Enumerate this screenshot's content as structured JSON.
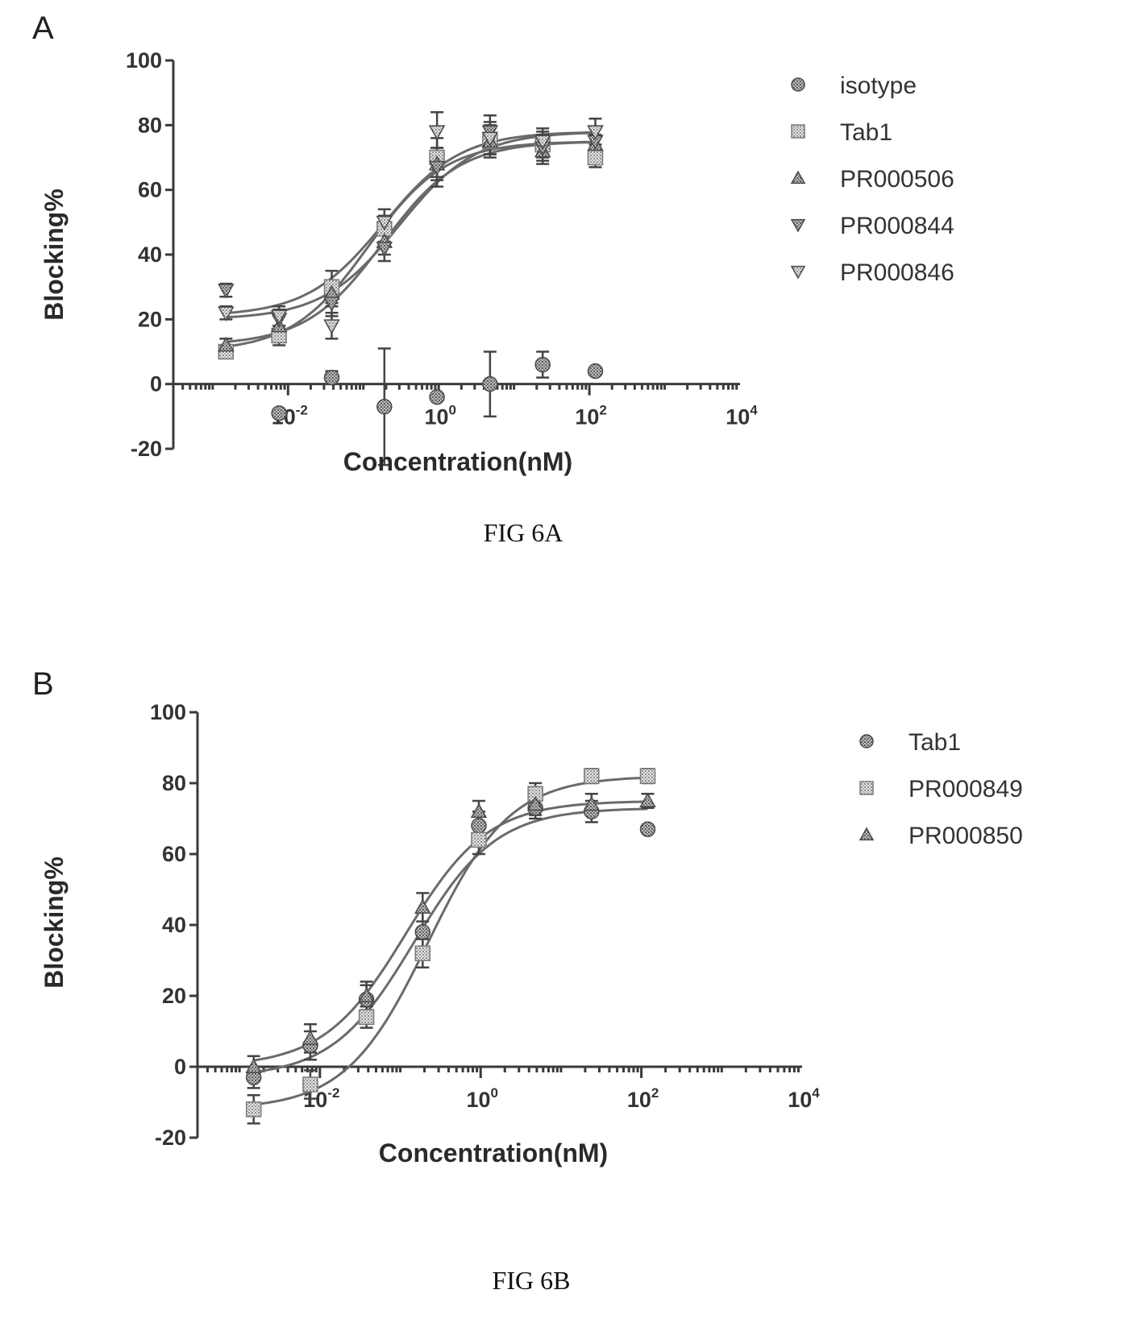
{
  "chart_data": [
    {
      "type": "scatter",
      "panel_label": "A",
      "caption": "FIG 6A",
      "title": "",
      "xlabel": "Concentration(nM)",
      "ylabel": "Blocking%",
      "xscale": "log",
      "xlim": [
        0.0003,
        10000
      ],
      "ylim": [
        -20,
        100
      ],
      "yticks": [
        -20,
        0,
        20,
        40,
        60,
        80,
        100
      ],
      "xticks": [
        0.01,
        1,
        100,
        10000
      ],
      "xtick_labels": [
        {
          "base": "10",
          "exp": "-2"
        },
        {
          "base": "10",
          "exp": "0"
        },
        {
          "base": "10",
          "exp": "2"
        },
        {
          "base": "10",
          "exp": "4"
        }
      ],
      "legend_position": "right",
      "grid": false,
      "x": [
        0.0015,
        0.0076,
        0.038,
        0.19,
        0.95,
        4.8,
        24,
        120
      ],
      "series": [
        {
          "name": "isotype",
          "marker": "circle",
          "values": [
            null,
            -9,
            2,
            -7,
            -4,
            0,
            6,
            4
          ],
          "errors": [
            null,
            0,
            2,
            18,
            0,
            10,
            4,
            0
          ],
          "fit": false
        },
        {
          "name": "Tab1",
          "marker": "square",
          "values": [
            10,
            15,
            30,
            48,
            70,
            75,
            74,
            70
          ],
          "errors": [
            2,
            3,
            5,
            4,
            6,
            5,
            4,
            3
          ],
          "fit": true
        },
        {
          "name": "PR000506",
          "marker": "triangle-up",
          "values": [
            12,
            18,
            28,
            44,
            68,
            75,
            72,
            74
          ],
          "errors": [
            2,
            3,
            4,
            4,
            5,
            4,
            4,
            3
          ],
          "fit": true
        },
        {
          "name": "PR000844",
          "marker": "triangle-down",
          "values": [
            29,
            20,
            25,
            42,
            67,
            78,
            73,
            75
          ],
          "errors": [
            2,
            3,
            4,
            4,
            6,
            5,
            4,
            4
          ],
          "fit": true
        },
        {
          "name": "PR000846",
          "marker": "triangle-down-open",
          "values": [
            22,
            21,
            18,
            50,
            78,
            76,
            75,
            78
          ],
          "errors": [
            2,
            3,
            4,
            4,
            6,
            5,
            4,
            4
          ],
          "fit": true
        }
      ]
    },
    {
      "type": "scatter",
      "panel_label": "B",
      "caption": "FIG 6B",
      "title": "",
      "xlabel": "Concentration(nM)",
      "ylabel": "Blocking%",
      "xscale": "log",
      "xlim": [
        0.0003,
        10000
      ],
      "ylim": [
        -20,
        100
      ],
      "yticks": [
        -20,
        0,
        20,
        40,
        60,
        80,
        100
      ],
      "xticks": [
        0.01,
        1,
        100,
        10000
      ],
      "xtick_labels": [
        {
          "base": "10",
          "exp": "-2"
        },
        {
          "base": "10",
          "exp": "0"
        },
        {
          "base": "10",
          "exp": "2"
        },
        {
          "base": "10",
          "exp": "4"
        }
      ],
      "legend_position": "right",
      "grid": false,
      "x": [
        0.0015,
        0.0076,
        0.038,
        0.19,
        0.95,
        4.8,
        24,
        120
      ],
      "series": [
        {
          "name": "Tab1",
          "marker": "circle",
          "values": [
            -3,
            6,
            19,
            38,
            68,
            73,
            72,
            67
          ],
          "errors": [
            3,
            4,
            4,
            6,
            4,
            3,
            3,
            0
          ],
          "fit": true
        },
        {
          "name": "PR000849",
          "marker": "square",
          "values": [
            -12,
            -5,
            14,
            32,
            64,
            77,
            82,
            82
          ],
          "errors": [
            4,
            4,
            3,
            4,
            4,
            3,
            2,
            2
          ],
          "fit": true
        },
        {
          "name": "PR000850",
          "marker": "triangle-up",
          "values": [
            0,
            8,
            20,
            45,
            72,
            74,
            74,
            75
          ],
          "errors": [
            3,
            4,
            4,
            4,
            3,
            3,
            3,
            2
          ],
          "fit": true
        }
      ]
    }
  ]
}
